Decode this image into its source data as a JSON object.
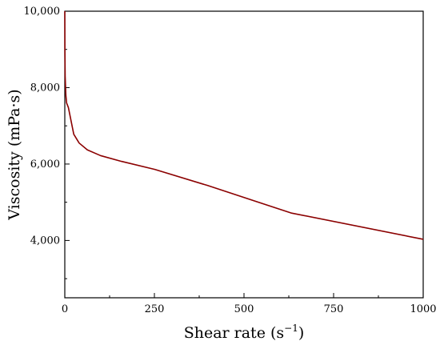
{
  "chart_data": {
    "type": "line",
    "xlabel": "Shear rate (s",
    "xlabel_superscript": "−1",
    "xlabel_suffix": ")",
    "ylabel": "Viscosity (mPa·s)",
    "xlim": [
      0,
      1000
    ],
    "ylim": [
      2500,
      10000
    ],
    "x_ticks": [
      0,
      250,
      500,
      750,
      1000
    ],
    "x_tick_labels": [
      "0",
      "250",
      "500",
      "750",
      "1000"
    ],
    "y_ticks": [
      4000,
      6000,
      8000,
      10000
    ],
    "y_tick_labels": [
      "4,000",
      "6,000",
      "8,000",
      "10,000"
    ],
    "grid": false,
    "series": [
      {
        "color": "#8b0000",
        "x": [
          0,
          0.3,
          1,
          3,
          5,
          10,
          25,
          40,
          63,
          100,
          158,
          251,
          398,
          631,
          1000
        ],
        "y": [
          10000,
          9000,
          8300,
          7800,
          7600,
          7480,
          6780,
          6550,
          6370,
          6220,
          6070,
          5860,
          5440,
          4720,
          4030
        ]
      }
    ]
  }
}
